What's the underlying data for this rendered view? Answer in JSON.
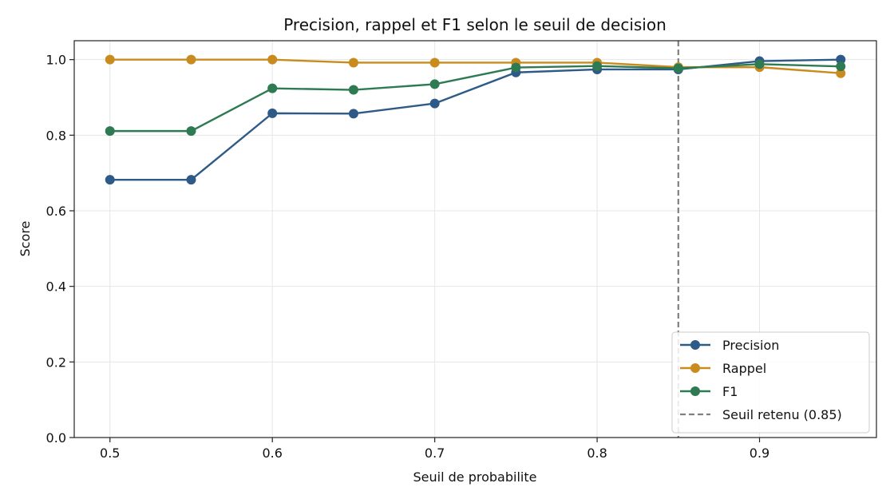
{
  "chart_data": {
    "type": "line",
    "title": "Precision, rappel et F1 selon le seuil de decision",
    "xlabel": "Seuil de probabilite",
    "ylabel": "Score",
    "xlim": [
      0.478,
      0.972
    ],
    "ylim": [
      0.0,
      1.05
    ],
    "x_ticks": [
      0.5,
      0.6,
      0.7,
      0.8,
      0.9
    ],
    "y_ticks": [
      0.0,
      0.2,
      0.4,
      0.6,
      0.8,
      1.0
    ],
    "x_tick_labels": [
      "0.5",
      "0.6",
      "0.7",
      "0.8",
      "0.9"
    ],
    "y_tick_labels": [
      "0.0",
      "0.2",
      "0.4",
      "0.6",
      "0.8",
      "1.0"
    ],
    "grid": true,
    "legend_position": "bottom-right",
    "x": [
      0.5,
      0.55,
      0.6,
      0.65,
      0.7,
      0.75,
      0.8,
      0.85,
      0.9,
      0.95
    ],
    "series": [
      {
        "name": "Precision",
        "color": "#2e5a87",
        "values": [
          0.682,
          0.682,
          0.858,
          0.857,
          0.884,
          0.966,
          0.974,
          0.974,
          0.996,
          1.0
        ]
      },
      {
        "name": "Rappel",
        "color": "#c98b1e",
        "values": [
          1.0,
          1.0,
          1.0,
          0.992,
          0.992,
          0.992,
          0.992,
          0.98,
          0.98,
          0.964
        ]
      },
      {
        "name": "F1",
        "color": "#2e7a52",
        "values": [
          0.811,
          0.811,
          0.924,
          0.92,
          0.935,
          0.979,
          0.983,
          0.977,
          0.988,
          0.982
        ]
      }
    ],
    "reference_line": {
      "name": "Seuil retenu (0.85)",
      "x": 0.85,
      "color": "#808080",
      "style": "dashed"
    }
  }
}
